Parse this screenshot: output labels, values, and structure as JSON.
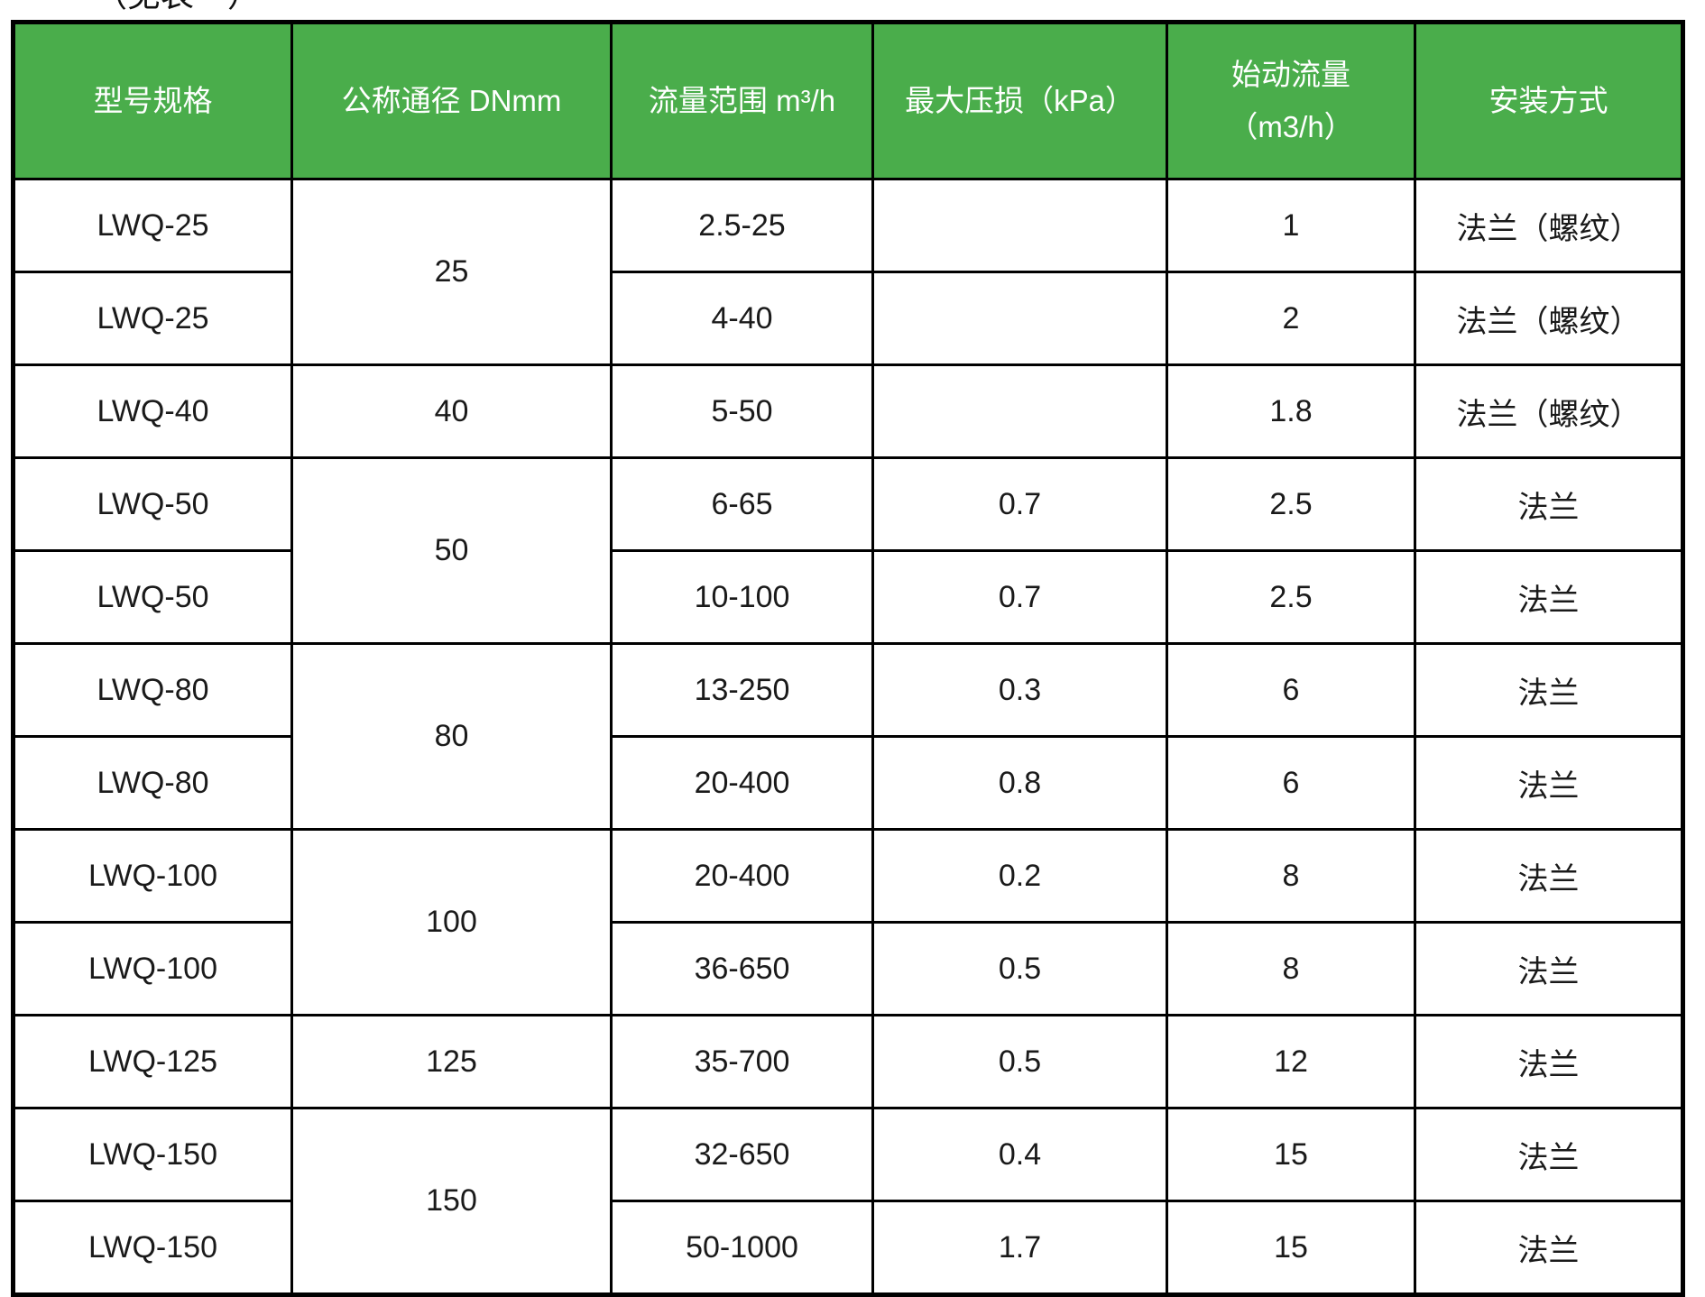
{
  "title": {
    "text": "（见表一）"
  },
  "colors": {
    "header_bg": "#4aad4b",
    "header_text": "#ffffff",
    "body_text": "#1a1a1a",
    "border": "#000000"
  },
  "table": {
    "columns": [
      {
        "label": "型号规格"
      },
      {
        "label": "公称通径 DNmm"
      },
      {
        "label": "流量范围 m³/h"
      },
      {
        "label": "最大压损（kPa）"
      },
      {
        "label": "始动流量",
        "label2": "（m3/h）"
      },
      {
        "label": "安装方式"
      }
    ],
    "rows": [
      {
        "model": "LWQ-25",
        "dn": "25",
        "dn_rowspan": 2,
        "range": "2.5-25",
        "ploss": "",
        "start": "1",
        "install": "法兰（螺纹）"
      },
      {
        "model": "LWQ-25",
        "dn": null,
        "range": "4-40",
        "ploss": "",
        "start": "2",
        "install": "法兰（螺纹）"
      },
      {
        "model": "LWQ-40",
        "dn": "40",
        "dn_rowspan": 1,
        "range": "5-50",
        "ploss": "",
        "start": "1.8",
        "install": "法兰（螺纹）"
      },
      {
        "model": "LWQ-50",
        "dn": "50",
        "dn_rowspan": 2,
        "range": "6-65",
        "ploss": "0.7",
        "start": "2.5",
        "install": "法兰"
      },
      {
        "model": "LWQ-50",
        "dn": null,
        "range": "10-100",
        "ploss": "0.7",
        "start": "2.5",
        "install": "法兰"
      },
      {
        "model": "LWQ-80",
        "dn": "80",
        "dn_rowspan": 2,
        "range": "13-250",
        "ploss": "0.3",
        "start": "6",
        "install": "法兰"
      },
      {
        "model": "LWQ-80",
        "dn": null,
        "range": "20-400",
        "ploss": "0.8",
        "start": "6",
        "install": "法兰"
      },
      {
        "model": "LWQ-100",
        "dn": "100",
        "dn_rowspan": 2,
        "range": "20-400",
        "ploss": "0.2",
        "start": "8",
        "install": "法兰"
      },
      {
        "model": "LWQ-100",
        "dn": null,
        "range": "36-650",
        "ploss": "0.5",
        "start": "8",
        "install": "法兰"
      },
      {
        "model": "LWQ-125",
        "dn": "125",
        "dn_rowspan": 1,
        "range": "35-700",
        "ploss": "0.5",
        "start": "12",
        "install": "法兰"
      },
      {
        "model": "LWQ-150",
        "dn": "150",
        "dn_rowspan": 2,
        "range": "32-650",
        "ploss": "0.4",
        "start": "15",
        "install": "法兰"
      },
      {
        "model": "LWQ-150",
        "dn": null,
        "range": "50-1000",
        "ploss": "1.7",
        "start": "15",
        "install": "法兰"
      }
    ]
  }
}
